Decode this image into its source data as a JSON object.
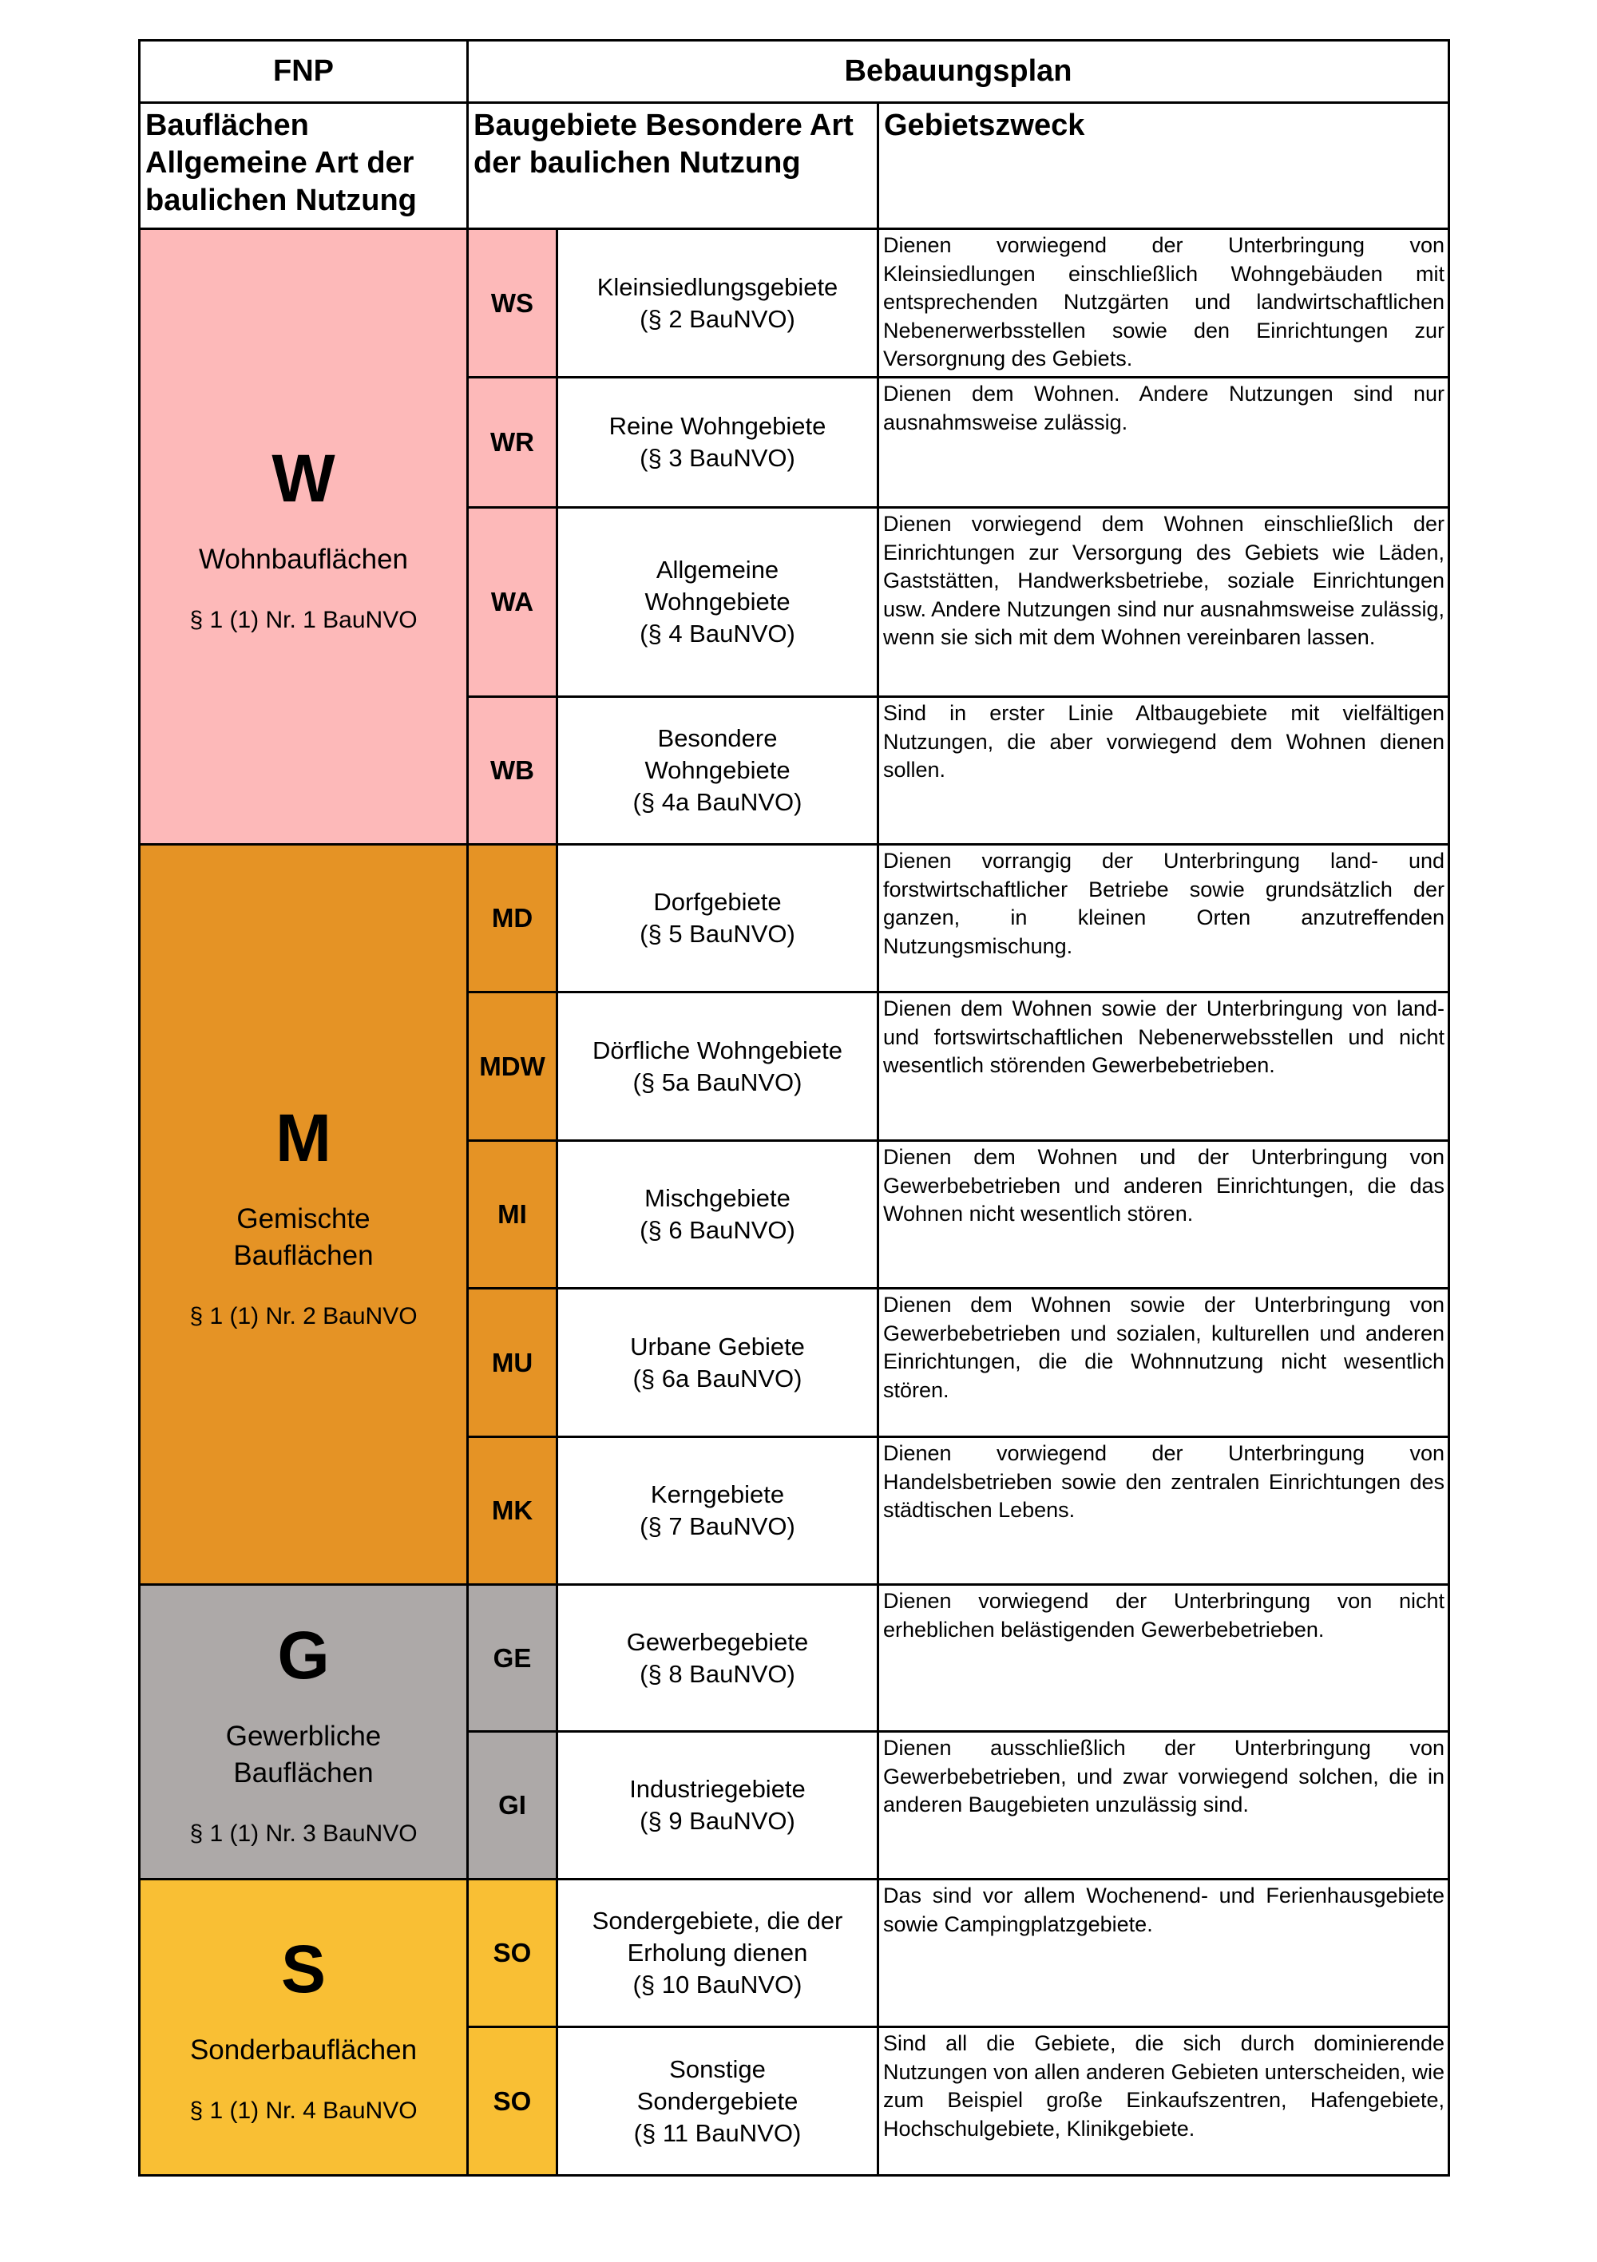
{
  "header": {
    "fnp": "FNP",
    "bplan": "Bebauungsplan",
    "col1": "Bauflächen Allgemeine Art der baulichen Nutzung",
    "col2": "Baugebiete Besondere Art der baulichen Nutzung",
    "col3": "Gebietszweck"
  },
  "colors": {
    "W": "#fdb9b9",
    "M": "#e59325",
    "G": "#ada9a8",
    "S": "#f9bf34"
  },
  "groups": [
    {
      "letter": "W",
      "name": "Wohnbauflächen",
      "par": "§ 1 (1) Nr. 1 BauNVO"
    },
    {
      "letter": "M",
      "name": "Gemischte Bauflächen",
      "par": "§ 1 (1) Nr. 2 BauNVO"
    },
    {
      "letter": "G",
      "name": "Gewerbliche Bauflächen",
      "par": "§ 1 (1) Nr. 3 BauNVO"
    },
    {
      "letter": "S",
      "name": "Sonderbauflächen",
      "par": "§ 1 (1) Nr. 4 BauNVO"
    }
  ],
  "rows": [
    {
      "code": "WS",
      "name": "Kleinsiedlungsgebiete",
      "par": "(§ 2 BauNVO)",
      "desc": "Dienen vorwiegend der Unterbringung von Kleinsiedlungen einschließlich Wohngebäuden mit entsprechenden Nutzgärten und landwirtschaftlichen Nebenerwerbsstellen sowie den Einrichtungen zur Versorgnung des Gebiets."
    },
    {
      "code": "WR",
      "name": "Reine Wohngebiete",
      "par": "(§ 3 BauNVO)",
      "desc": "Dienen dem Wohnen. Andere Nutzungen sind nur ausnahmsweise zulässig."
    },
    {
      "code": "WA",
      "name": "Allgemeine Wohngebiete",
      "par": "(§ 4 BauNVO)",
      "desc": "Dienen vorwiegend dem Wohnen einschließlich der Einrichtungen zur Versorgung des Gebiets wie Läden, Gaststätten, Handwerksbetriebe, soziale Einrichtungen usw. Andere Nutzungen sind nur ausnahmsweise zulässig, wenn sie sich mit dem Wohnen vereinbaren lassen."
    },
    {
      "code": "WB",
      "name": "Besondere Wohngebiete",
      "par": "(§ 4a BauNVO)",
      "desc": "Sind in erster Linie Altbaugebiete mit vielfältigen Nutzungen, die aber vorwiegend dem Wohnen dienen sollen."
    },
    {
      "code": "MD",
      "name": "Dorfgebiete",
      "par": "(§ 5 BauNVO)",
      "desc": "Dienen vorrangig der Unterbringung land- und forstwirtschaftlicher Betriebe sowie grundsätzlich der ganzen, in kleinen Orten anzutreffenden Nutzungsmischung."
    },
    {
      "code": "MDW",
      "name": "Dörfliche Wohngebiete",
      "par": "(§ 5a BauNVO)",
      "desc": "Dienen dem Wohnen sowie der Unterbringung von land- und fortswirtschaftlichen Nebenerwebsstellen und nicht wesentlich störenden Gewerbebetrieben."
    },
    {
      "code": "MI",
      "name": "Mischgebiete",
      "par": "(§ 6 BauNVO)",
      "desc": "Dienen dem Wohnen und der Unterbringung von Gewerbebetrieben und anderen Einrichtungen, die das Wohnen nicht wesentlich stören."
    },
    {
      "code": "MU",
      "name": "Urbane Gebiete",
      "par": "(§ 6a BauNVO)",
      "desc": "Dienen dem Wohnen sowie der Unterbringung von Gewerbebetrieben und sozialen, kulturellen und anderen Einrichtungen, die die Wohnnutzung nicht wesentlich stören."
    },
    {
      "code": "MK",
      "name": "Kerngebiete",
      "par": "(§ 7 BauNVO)",
      "desc": "Dienen vorwiegend der Unterbringung von Handelsbetrieben sowie den zentralen Einrichtungen des städtischen Lebens."
    },
    {
      "code": "GE",
      "name": "Gewerbegebiete",
      "par": "(§ 8 BauNVO)",
      "desc": "Dienen vorwiegend der Unterbringung von nicht erheblichen belästigenden Gewerbebetrieben."
    },
    {
      "code": "GI",
      "name": "Industriegebiete",
      "par": "(§ 9 BauNVO)",
      "desc": "Dienen ausschließlich der Unterbringung von Gewerbebetrieben, und zwar vorwiegend solchen, die in anderen Baugebieten unzulässig sind."
    },
    {
      "code": "SO",
      "name": "Sondergebiete, die der Erholung dienen",
      "par": "(§ 10 BauNVO)",
      "desc": "Das sind vor allem Wochenend- und Ferienhausgebiete sowie Campingplatzgebiete."
    },
    {
      "code": "SO",
      "name": "Sonstige Sondergebiete",
      "par": "(§ 11 BauNVO)",
      "desc": "Sind all die Gebiete, die sich durch dominierende Nutzungen von allen anderen Gebieten unterscheiden, wie zum Beispiel große Einkaufszentren, Hafengebiete, Hochschulgebiete, Klinikgebiete."
    }
  ]
}
